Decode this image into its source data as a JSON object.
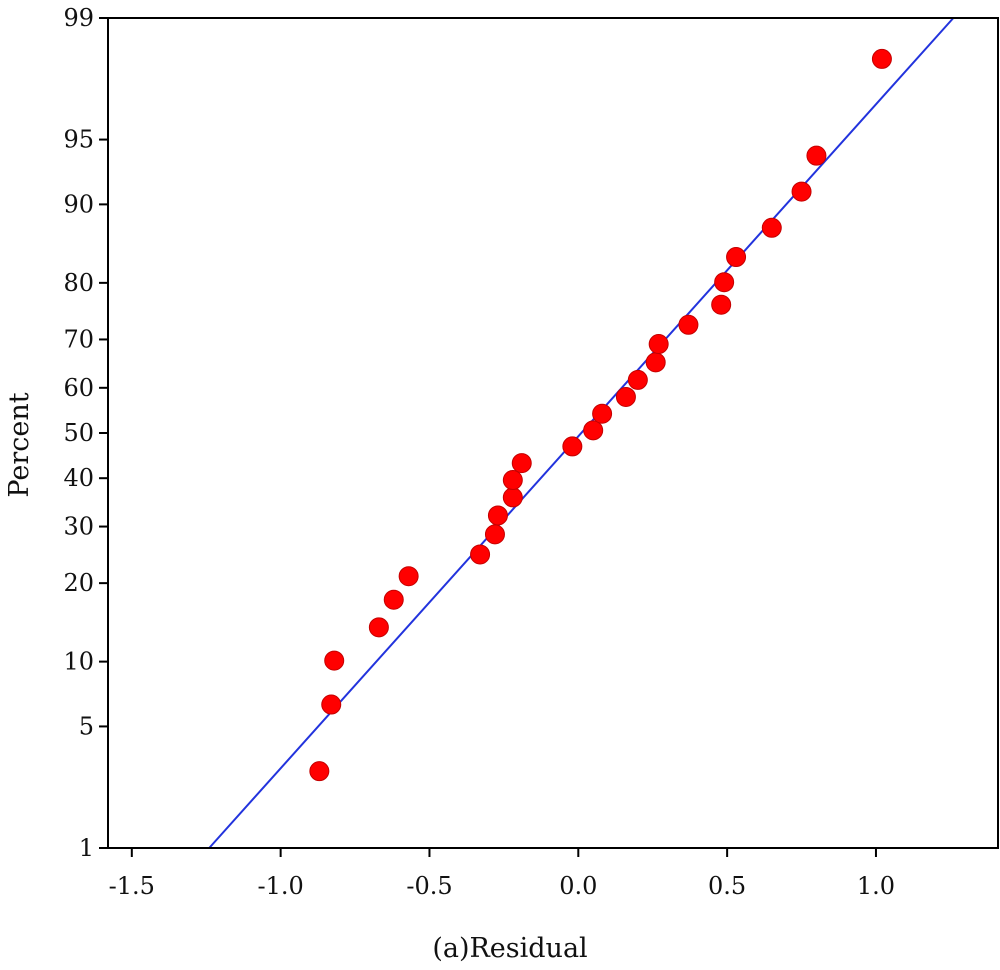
{
  "chart_data": {
    "type": "scatter",
    "title": "",
    "xlabel": "(a)Residual",
    "ylabel": "Percent",
    "x_ticks": [
      -1.5,
      -1.0,
      -0.5,
      0.0,
      0.5,
      1.0
    ],
    "x_tick_labels": [
      "-1.5",
      "-1.0",
      "-0.5",
      "0.0",
      "0.5",
      "1.0"
    ],
    "y_ticks": [
      1,
      5,
      10,
      20,
      30,
      40,
      50,
      60,
      70,
      80,
      90,
      95,
      99
    ],
    "y_tick_labels": [
      "1",
      "5",
      "10",
      "20",
      "30",
      "40",
      "50",
      "60",
      "70",
      "80",
      "90",
      "95",
      "99"
    ],
    "xlim": [
      -1.58,
      1.41
    ],
    "ylim": [
      1,
      99
    ],
    "y_scale": "normal-probability",
    "grid": false,
    "legend": "none",
    "colors": {
      "points": "#ff0000",
      "fit_line": "#2233dd",
      "axes": "#000000"
    },
    "points": [
      {
        "x": -0.87,
        "y": 2.9
      },
      {
        "x": -0.83,
        "y": 6.4
      },
      {
        "x": -0.82,
        "y": 10.1
      },
      {
        "x": -0.67,
        "y": 13.8
      },
      {
        "x": -0.62,
        "y": 17.5
      },
      {
        "x": -0.57,
        "y": 21.1
      },
      {
        "x": -0.33,
        "y": 24.8
      },
      {
        "x": -0.28,
        "y": 28.5
      },
      {
        "x": -0.27,
        "y": 32.2
      },
      {
        "x": -0.22,
        "y": 35.9
      },
      {
        "x": -0.22,
        "y": 39.6
      },
      {
        "x": -0.19,
        "y": 43.3
      },
      {
        "x": -0.02,
        "y": 47.0
      },
      {
        "x": 0.05,
        "y": 50.6
      },
      {
        "x": 0.08,
        "y": 54.3
      },
      {
        "x": 0.16,
        "y": 58.0
      },
      {
        "x": 0.2,
        "y": 61.7
      },
      {
        "x": 0.26,
        "y": 65.4
      },
      {
        "x": 0.27,
        "y": 69.1
      },
      {
        "x": 0.37,
        "y": 72.8
      },
      {
        "x": 0.48,
        "y": 76.4
      },
      {
        "x": 0.49,
        "y": 80.1
      },
      {
        "x": 0.53,
        "y": 83.8
      },
      {
        "x": 0.65,
        "y": 87.5
      },
      {
        "x": 0.75,
        "y": 91.2
      },
      {
        "x": 0.8,
        "y": 94.0
      },
      {
        "x": 1.02,
        "y": 98.2
      }
    ],
    "fit_line": {
      "points": [
        {
          "x": -1.24,
          "y": 1
        },
        {
          "x": 1.26,
          "y": 99
        }
      ]
    }
  }
}
